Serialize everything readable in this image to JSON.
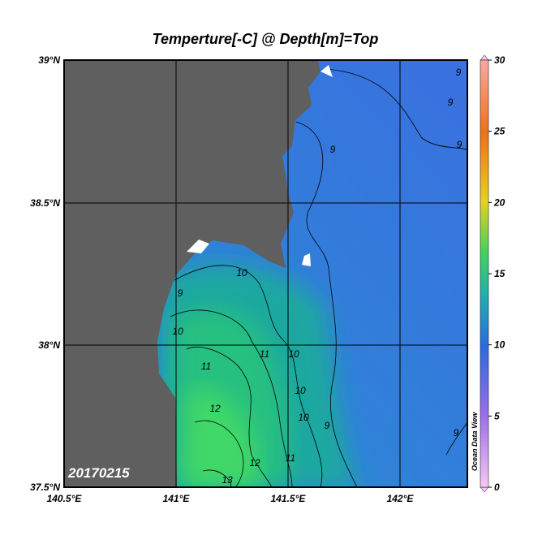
{
  "title": "Temperture[-C] @ Depth[m]=Top",
  "lat_labels": [
    "39°N",
    "38.5°N",
    "38°N",
    "37.5°N"
  ],
  "lon_labels": [
    "140.5°E",
    "141°E",
    "141.5°E",
    "142°E"
  ],
  "date": "20170215",
  "watermark": "Ocean Data View",
  "colorbar": {
    "range": [
      0,
      30
    ],
    "ticks": [
      0,
      5,
      10,
      15,
      20,
      25,
      30
    ]
  },
  "contour_labels": [
    9,
    9,
    9,
    9,
    10,
    9,
    10,
    11,
    11,
    10,
    10,
    12,
    10,
    11,
    12,
    13,
    9,
    9
  ]
}
